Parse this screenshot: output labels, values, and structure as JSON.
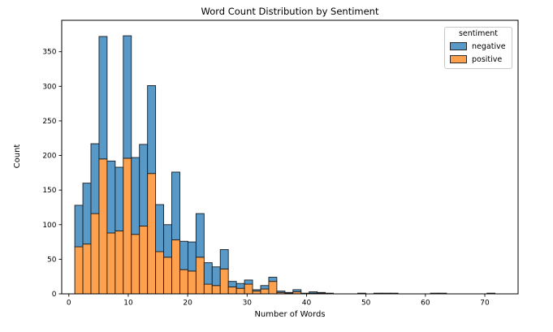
{
  "chart_data": {
    "type": "bar",
    "subtype": "stacked-histogram",
    "title": "Word Count Distribution by Sentiment",
    "xlabel": "Number of Words",
    "ylabel": "Count",
    "x_ticks": [
      0,
      10,
      20,
      30,
      40,
      50,
      60,
      70
    ],
    "y_ticks": [
      0,
      50,
      100,
      150,
      200,
      250,
      300,
      350
    ],
    "xlim": [
      -1.2,
      75.6
    ],
    "ylim": [
      0,
      395.4
    ],
    "grid": false,
    "bin_width": 1.36,
    "colors": {
      "positive": "#FDA14E",
      "negative": "#5999C8",
      "bar_edge": "#1c1c1c",
      "axis": "#000000",
      "legend_border": "#c9c9c9"
    },
    "legend": {
      "title": "sentiment",
      "position": "upper-right",
      "entries": [
        {
          "label": "negative",
          "color": "#5999C8"
        },
        {
          "label": "positive",
          "color": "#FDA14E"
        }
      ]
    },
    "stack_order_bottom_to_top": [
      "positive",
      "negative"
    ],
    "bins": [
      {
        "x0": 1.0,
        "positive": 68,
        "negative": 60
      },
      {
        "x0": 2.36,
        "positive": 72,
        "negative": 88
      },
      {
        "x0": 3.72,
        "positive": 116,
        "negative": 101
      },
      {
        "x0": 5.08,
        "positive": 195,
        "negative": 177
      },
      {
        "x0": 6.44,
        "positive": 88,
        "negative": 104
      },
      {
        "x0": 7.8,
        "positive": 91,
        "negative": 92
      },
      {
        "x0": 9.16,
        "positive": 196,
        "negative": 177
      },
      {
        "x0": 10.52,
        "positive": 86,
        "negative": 111
      },
      {
        "x0": 11.88,
        "positive": 98,
        "negative": 118
      },
      {
        "x0": 13.24,
        "positive": 174,
        "negative": 127
      },
      {
        "x0": 14.6,
        "positive": 61,
        "negative": 68
      },
      {
        "x0": 15.96,
        "positive": 53,
        "negative": 47
      },
      {
        "x0": 17.32,
        "positive": 78,
        "negative": 98
      },
      {
        "x0": 18.68,
        "positive": 35,
        "negative": 41
      },
      {
        "x0": 20.04,
        "positive": 33,
        "negative": 42
      },
      {
        "x0": 21.4,
        "positive": 53,
        "negative": 63
      },
      {
        "x0": 22.76,
        "positive": 14,
        "negative": 31
      },
      {
        "x0": 24.12,
        "positive": 12,
        "negative": 27
      },
      {
        "x0": 25.48,
        "positive": 36,
        "negative": 28
      },
      {
        "x0": 26.84,
        "positive": 10,
        "negative": 8
      },
      {
        "x0": 28.2,
        "positive": 8,
        "negative": 7
      },
      {
        "x0": 29.56,
        "positive": 14,
        "negative": 6
      },
      {
        "x0": 30.92,
        "positive": 4,
        "negative": 2
      },
      {
        "x0": 32.28,
        "positive": 7,
        "negative": 5
      },
      {
        "x0": 33.64,
        "positive": 18,
        "negative": 6
      },
      {
        "x0": 35.0,
        "positive": 2,
        "negative": 2
      },
      {
        "x0": 36.36,
        "positive": 1,
        "negative": 1
      },
      {
        "x0": 37.72,
        "positive": 3,
        "negative": 3
      },
      {
        "x0": 39.08,
        "positive": 1,
        "negative": 0
      },
      {
        "x0": 40.44,
        "positive": 1,
        "negative": 2
      },
      {
        "x0": 41.8,
        "positive": 1,
        "negative": 1
      },
      {
        "x0": 43.16,
        "positive": 1,
        "negative": 0
      },
      {
        "x0": 48.6,
        "positive": 0,
        "negative": 1
      },
      {
        "x0": 51.32,
        "positive": 0,
        "negative": 1
      },
      {
        "x0": 52.68,
        "positive": 0,
        "negative": 1
      },
      {
        "x0": 54.04,
        "positive": 0,
        "negative": 1
      },
      {
        "x0": 60.84,
        "positive": 0,
        "negative": 1
      },
      {
        "x0": 62.2,
        "positive": 0,
        "negative": 1
      },
      {
        "x0": 70.36,
        "positive": 0,
        "negative": 1
      }
    ]
  }
}
